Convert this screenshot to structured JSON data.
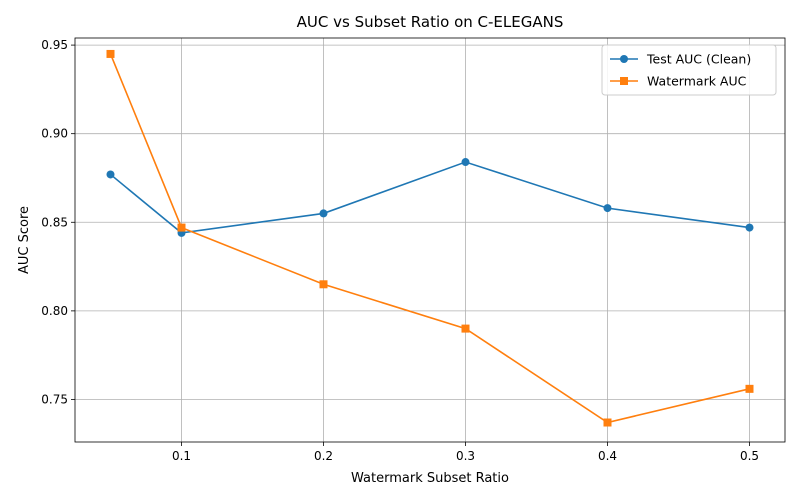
{
  "chart_data": {
    "type": "line",
    "title": "AUC vs Subset Ratio on C-ELEGANS",
    "xlabel": "Watermark Subset Ratio",
    "ylabel": "AUC Score",
    "x": [
      0.05,
      0.1,
      0.2,
      0.3,
      0.4,
      0.5
    ],
    "xlim": [
      0.025,
      0.525
    ],
    "ylim": [
      0.726,
      0.954
    ],
    "xticks": [
      0.1,
      0.2,
      0.3,
      0.4,
      0.5
    ],
    "xtick_labels": [
      "0.1",
      "0.2",
      "0.3",
      "0.4",
      "0.5"
    ],
    "yticks": [
      0.75,
      0.8,
      0.85,
      0.9,
      0.95
    ],
    "ytick_labels": [
      "0.75",
      "0.80",
      "0.85",
      "0.90",
      "0.95"
    ],
    "grid": true,
    "legend_position": "top-right",
    "series": [
      {
        "name": "Test AUC (Clean)",
        "values": [
          0.877,
          0.844,
          0.855,
          0.884,
          0.858,
          0.847
        ],
        "color": "#1f77b4",
        "marker": "circle"
      },
      {
        "name": "Watermark AUC",
        "values": [
          0.945,
          0.847,
          0.815,
          0.79,
          0.737,
          0.756
        ],
        "color": "#ff7f0e",
        "marker": "square"
      }
    ]
  }
}
